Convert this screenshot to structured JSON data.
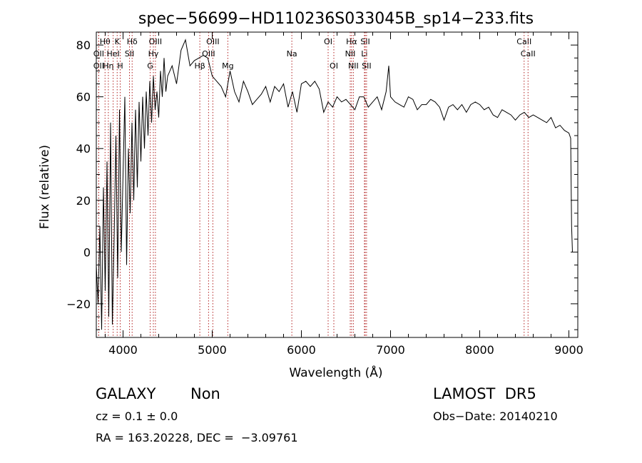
{
  "chart_data": {
    "type": "line",
    "title": "spec−56699−HD110236S033045B_sp14−233.fits",
    "xlabel": "Wavelength (Å)",
    "ylabel": "Flux (relative)",
    "xlim": [
      3700,
      9100
    ],
    "ylim": [
      -33,
      85
    ],
    "xticks": [
      4000,
      5000,
      6000,
      7000,
      8000,
      9000
    ],
    "xtick_labels": [
      "4000",
      "5000",
      "6000",
      "7000",
      "8000",
      "9000"
    ],
    "yticks": [
      -20,
      0,
      20,
      40,
      60,
      80
    ],
    "ytick_labels": [
      "−20",
      "0",
      "20",
      "40",
      "60",
      "80"
    ],
    "line_color": "#000000",
    "marker_line_color": "#b22222",
    "grid": false,
    "spectrum": {
      "x": [
        3700,
        3720,
        3740,
        3760,
        3780,
        3800,
        3820,
        3840,
        3860,
        3880,
        3900,
        3920,
        3940,
        3960,
        3980,
        4000,
        4020,
        4040,
        4060,
        4080,
        4100,
        4120,
        4140,
        4160,
        4180,
        4200,
        4220,
        4240,
        4260,
        4280,
        4300,
        4320,
        4340,
        4360,
        4380,
        4400,
        4420,
        4440,
        4460,
        4480,
        4500,
        4550,
        4600,
        4650,
        4700,
        4750,
        4800,
        4850,
        4900,
        4950,
        5000,
        5050,
        5100,
        5150,
        5200,
        5250,
        5300,
        5350,
        5400,
        5450,
        5500,
        5550,
        5600,
        5650,
        5700,
        5750,
        5800,
        5850,
        5900,
        5950,
        6000,
        6050,
        6100,
        6150,
        6200,
        6250,
        6300,
        6350,
        6400,
        6450,
        6500,
        6550,
        6600,
        6650,
        6700,
        6750,
        6800,
        6850,
        6900,
        6950,
        6980,
        7000,
        7050,
        7100,
        7150,
        7200,
        7250,
        7300,
        7350,
        7400,
        7450,
        7500,
        7550,
        7600,
        7650,
        7700,
        7750,
        7800,
        7850,
        7900,
        7950,
        8000,
        8050,
        8100,
        8150,
        8200,
        8250,
        8300,
        8350,
        8400,
        8450,
        8500,
        8550,
        8600,
        8650,
        8700,
        8750,
        8800,
        8850,
        8900,
        8950,
        9000,
        9020,
        9030,
        9040
      ],
      "y": [
        -5,
        -20,
        10,
        -30,
        25,
        -15,
        35,
        -25,
        50,
        -28,
        5,
        45,
        -10,
        55,
        0,
        30,
        60,
        -5,
        40,
        15,
        50,
        20,
        55,
        25,
        58,
        35,
        60,
        40,
        62,
        45,
        66,
        50,
        68,
        55,
        62,
        52,
        70,
        60,
        75,
        62,
        68,
        72,
        65,
        78,
        82,
        72,
        74,
        75,
        76,
        75,
        68,
        66,
        64,
        60,
        70,
        62,
        58,
        66,
        62,
        57,
        59,
        61,
        64,
        58,
        64,
        62,
        65,
        56,
        62,
        54,
        65,
        66,
        64,
        66,
        63,
        54,
        58,
        56,
        60,
        58,
        59,
        57,
        55,
        60,
        60,
        56,
        58,
        60,
        55,
        62,
        72,
        60,
        58,
        57,
        56,
        60,
        59,
        55,
        57,
        57,
        59,
        58,
        56,
        51,
        56,
        57,
        55,
        57,
        54,
        57,
        58,
        57,
        55,
        56,
        53,
        52,
        55,
        54,
        53,
        51,
        53,
        54,
        52,
        53,
        52,
        51,
        50,
        52,
        48,
        49,
        47,
        46,
        44,
        10,
        0
      ]
    },
    "line_markers": [
      {
        "label": "OII",
        "x": 3727,
        "row": 3
      },
      {
        "label": "OII",
        "x": 3727,
        "row": 2
      },
      {
        "label": "Hθ",
        "x": 3798,
        "row": 1
      },
      {
        "label": "Hη",
        "x": 3835,
        "row": 3
      },
      {
        "label": "HeI",
        "x": 3889,
        "row": 2
      },
      {
        "label": "K",
        "x": 3934,
        "row": 1
      },
      {
        "label": "H",
        "x": 3968,
        "row": 3
      },
      {
        "label": "Hδ",
        "x": 4102,
        "row": 1
      },
      {
        "label": "SII",
        "x": 4072,
        "row": 2
      },
      {
        "label": "OIII",
        "x": 4363,
        "row": 1
      },
      {
        "label": "Hγ",
        "x": 4340,
        "row": 2
      },
      {
        "label": "G",
        "x": 4304,
        "row": 3
      },
      {
        "label": "Hβ",
        "x": 4861,
        "row": 3
      },
      {
        "label": "OIII",
        "x": 4959,
        "row": 2
      },
      {
        "label": "OIII",
        "x": 5007,
        "row": 1
      },
      {
        "label": "Mg",
        "x": 5175,
        "row": 3
      },
      {
        "label": "Na",
        "x": 5893,
        "row": 2
      },
      {
        "label": "OI",
        "x": 6300,
        "row": 1
      },
      {
        "label": "OI",
        "x": 6364,
        "row": 3
      },
      {
        "label": "Hα",
        "x": 6563,
        "row": 1
      },
      {
        "label": "NII",
        "x": 6548,
        "row": 2
      },
      {
        "label": "NII",
        "x": 6583,
        "row": 3
      },
      {
        "label": "SII",
        "x": 6716,
        "row": 1
      },
      {
        "label": "Li",
        "x": 6707,
        "row": 2
      },
      {
        "label": "SII",
        "x": 6731,
        "row": 3
      },
      {
        "label": "CaII",
        "x": 8498,
        "row": 1
      },
      {
        "label": "CaII",
        "x": 8542,
        "row": 2
      }
    ]
  },
  "footer": {
    "object_class": "GALAXY",
    "subclass": "Non",
    "survey": "LAMOST  DR5",
    "cz": "cz = 0.1 ± 0.0",
    "obs_date": "Obs−Date: 20140210",
    "radec": "RA = 163.20228, DEC =  −3.09761"
  }
}
